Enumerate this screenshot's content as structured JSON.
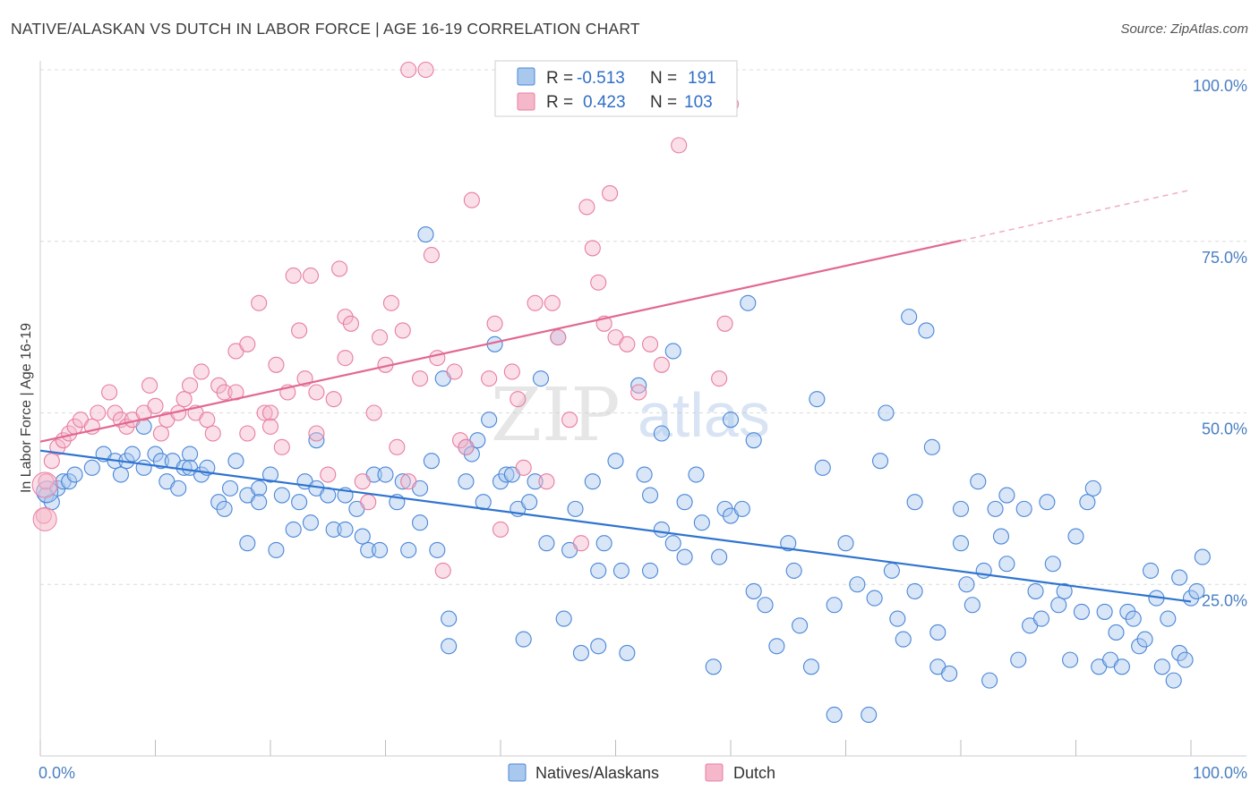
{
  "header": {
    "title": "NATIVE/ALASKAN VS DUTCH IN LABOR FORCE | AGE 16-19 CORRELATION CHART",
    "source": "Source: ZipAtlas.com"
  },
  "watermark": {
    "zip": "ZIP",
    "atlas": "atlas"
  },
  "legend_box": {
    "rows": [
      {
        "r_label": "R = ",
        "r_value": "-0.513",
        "n_label": "N = ",
        "n_value": "191",
        "color": "#a9c8ee"
      },
      {
        "r_label": "R = ",
        "r_value": "0.423",
        "n_label": "N = ",
        "n_value": "103",
        "color": "#f5b8cb"
      }
    ]
  },
  "bottom_legend": [
    {
      "label": "Natives/Alaskans",
      "color": "#a9c8ee"
    },
    {
      "label": "Dutch",
      "color": "#f5b8cb"
    }
  ],
  "chart_data": {
    "type": "scatter",
    "title": "NATIVE/ALASKAN VS DUTCH IN LABOR FORCE | AGE 16-19 CORRELATION CHART",
    "xlabel": "",
    "ylabel": "In Labor Force | Age 16-19",
    "x_tick_labels": [
      "0.0%",
      "100.0%"
    ],
    "y_tick_labels": [
      "25.0%",
      "50.0%",
      "75.0%",
      "100.0%"
    ],
    "xlim": [
      0,
      100
    ],
    "ylim": [
      0,
      100
    ],
    "grid": "horizontal dashed",
    "colors": {
      "natives": "#4a86d8",
      "dutch": "#e87da0",
      "natives_line": "#2f74d0",
      "dutch_line": "#e2688f"
    },
    "series": [
      {
        "name": "Natives/Alaskans",
        "trend": {
          "x": [
            0,
            100
          ],
          "y": [
            44.5,
            22.5
          ]
        },
        "points": [
          [
            0.5,
            38
          ],
          [
            1,
            37
          ],
          [
            1.5,
            39
          ],
          [
            2,
            40
          ],
          [
            2.5,
            40
          ],
          [
            3,
            41
          ],
          [
            4.5,
            42
          ],
          [
            5.5,
            44
          ],
          [
            6.5,
            43
          ],
          [
            7,
            41
          ],
          [
            7.5,
            43
          ],
          [
            8,
            44
          ],
          [
            9,
            42
          ],
          [
            9,
            48
          ],
          [
            10,
            44
          ],
          [
            10.5,
            43
          ],
          [
            11,
            40
          ],
          [
            11.5,
            43
          ],
          [
            12,
            39
          ],
          [
            12.5,
            42
          ],
          [
            13,
            44
          ],
          [
            13,
            42
          ],
          [
            14,
            41
          ],
          [
            14.5,
            42
          ],
          [
            15.5,
            37
          ],
          [
            16,
            36
          ],
          [
            16.5,
            39
          ],
          [
            17,
            43
          ],
          [
            18,
            31
          ],
          [
            18,
            38
          ],
          [
            19,
            39
          ],
          [
            19,
            37
          ],
          [
            20,
            41
          ],
          [
            20.5,
            30
          ],
          [
            21,
            38
          ],
          [
            22,
            33
          ],
          [
            22.5,
            37
          ],
          [
            23,
            40
          ],
          [
            23.5,
            34
          ],
          [
            24,
            39
          ],
          [
            24,
            46
          ],
          [
            25,
            38
          ],
          [
            25.5,
            33
          ],
          [
            26.5,
            38
          ],
          [
            26.5,
            33
          ],
          [
            27.5,
            36
          ],
          [
            28,
            32
          ],
          [
            28.5,
            30
          ],
          [
            29,
            41
          ],
          [
            29.5,
            30
          ],
          [
            30,
            41
          ],
          [
            31,
            37
          ],
          [
            31.5,
            40
          ],
          [
            32,
            30
          ],
          [
            33,
            39
          ],
          [
            33,
            34
          ],
          [
            33.5,
            76
          ],
          [
            34,
            43
          ],
          [
            34.5,
            30
          ],
          [
            35,
            55
          ],
          [
            35.5,
            20
          ],
          [
            35.5,
            16
          ],
          [
            37,
            45
          ],
          [
            37,
            40
          ],
          [
            37.5,
            44
          ],
          [
            38,
            46
          ],
          [
            38.5,
            37
          ],
          [
            39,
            49
          ],
          [
            39.5,
            60
          ],
          [
            40,
            40
          ],
          [
            40.5,
            41
          ],
          [
            41,
            41
          ],
          [
            41.5,
            36
          ],
          [
            42,
            17
          ],
          [
            42.5,
            37
          ],
          [
            43,
            40
          ],
          [
            43.5,
            55
          ],
          [
            44,
            31
          ],
          [
            45,
            61
          ],
          [
            45.5,
            20
          ],
          [
            46,
            30
          ],
          [
            46.5,
            36
          ],
          [
            47,
            15
          ],
          [
            48,
            40
          ],
          [
            48.5,
            27
          ],
          [
            48.5,
            16
          ],
          [
            49,
            31
          ],
          [
            50,
            43
          ],
          [
            50.5,
            27
          ],
          [
            51,
            15
          ],
          [
            52,
            54
          ],
          [
            52.5,
            41
          ],
          [
            53,
            38
          ],
          [
            53,
            27
          ],
          [
            54,
            33
          ],
          [
            54,
            47
          ],
          [
            55,
            31
          ],
          [
            55,
            59
          ],
          [
            56,
            37
          ],
          [
            56,
            29
          ],
          [
            57,
            41
          ],
          [
            57.5,
            34
          ],
          [
            58.5,
            13
          ],
          [
            59,
            29
          ],
          [
            59.5,
            36
          ],
          [
            60,
            35
          ],
          [
            60,
            49
          ],
          [
            61,
            36
          ],
          [
            61.5,
            66
          ],
          [
            62,
            46
          ],
          [
            62,
            24
          ],
          [
            63,
            22
          ],
          [
            64,
            16
          ],
          [
            65,
            31
          ],
          [
            65.5,
            27
          ],
          [
            66,
            19
          ],
          [
            67,
            13
          ],
          [
            67.5,
            52
          ],
          [
            68,
            42
          ],
          [
            69,
            6
          ],
          [
            69,
            22
          ],
          [
            70,
            31
          ],
          [
            71,
            25
          ],
          [
            72,
            6
          ],
          [
            72.5,
            23
          ],
          [
            73,
            43
          ],
          [
            73.5,
            50
          ],
          [
            74,
            27
          ],
          [
            74.5,
            20
          ],
          [
            75,
            17
          ],
          [
            75.5,
            64
          ],
          [
            76,
            37
          ],
          [
            76,
            24
          ],
          [
            77,
            62
          ],
          [
            77.5,
            45
          ],
          [
            78,
            13
          ],
          [
            78,
            18
          ],
          [
            79,
            12
          ],
          [
            80,
            31
          ],
          [
            80,
            36
          ],
          [
            80.5,
            25
          ],
          [
            81,
            22
          ],
          [
            81.5,
            40
          ],
          [
            82,
            27
          ],
          [
            82.5,
            11
          ],
          [
            83,
            36
          ],
          [
            83.5,
            32
          ],
          [
            84,
            38
          ],
          [
            84,
            28
          ],
          [
            85,
            14
          ],
          [
            85.5,
            36
          ],
          [
            86,
            19
          ],
          [
            86.5,
            24
          ],
          [
            87,
            20
          ],
          [
            87.5,
            37
          ],
          [
            88,
            28
          ],
          [
            88.5,
            22
          ],
          [
            89,
            24
          ],
          [
            89.5,
            14
          ],
          [
            90,
            32
          ],
          [
            90.5,
            21
          ],
          [
            91,
            37
          ],
          [
            91.5,
            39
          ],
          [
            92,
            13
          ],
          [
            92.5,
            21
          ],
          [
            93,
            14
          ],
          [
            93.5,
            18
          ],
          [
            94,
            13
          ],
          [
            94.5,
            21
          ],
          [
            95,
            20
          ],
          [
            95.5,
            16
          ],
          [
            96,
            17
          ],
          [
            96.5,
            27
          ],
          [
            97,
            23
          ],
          [
            97.5,
            13
          ],
          [
            98,
            20
          ],
          [
            98.5,
            11
          ],
          [
            99,
            26
          ],
          [
            99,
            15
          ],
          [
            99.5,
            14
          ],
          [
            100,
            23
          ],
          [
            100.5,
            24
          ],
          [
            101,
            29
          ]
        ]
      },
      {
        "name": "Dutch",
        "trend": {
          "x": [
            0,
            80
          ],
          "y": [
            45.8,
            75.1
          ]
        },
        "trend_dashed": {
          "x": [
            80,
            100
          ],
          "y": [
            75.1,
            82.5
          ]
        },
        "points": [
          [
            0.3,
            35
          ],
          [
            0.5,
            40
          ],
          [
            1,
            43
          ],
          [
            1.5,
            45
          ],
          [
            2,
            46
          ],
          [
            2.5,
            47
          ],
          [
            3,
            48
          ],
          [
            3.5,
            49
          ],
          [
            4.5,
            48
          ],
          [
            5,
            50
          ],
          [
            6,
            53
          ],
          [
            6.5,
            50
          ],
          [
            7,
            49
          ],
          [
            7.5,
            48
          ],
          [
            8,
            49
          ],
          [
            9,
            50
          ],
          [
            9.5,
            54
          ],
          [
            10,
            51
          ],
          [
            10.5,
            47
          ],
          [
            11,
            49
          ],
          [
            12,
            50
          ],
          [
            12.5,
            52
          ],
          [
            13,
            54
          ],
          [
            13.5,
            50
          ],
          [
            14,
            56
          ],
          [
            14.5,
            49
          ],
          [
            15,
            47
          ],
          [
            15.5,
            54
          ],
          [
            16,
            53
          ],
          [
            17,
            53
          ],
          [
            17,
            59
          ],
          [
            18,
            60
          ],
          [
            18,
            47
          ],
          [
            19,
            66
          ],
          [
            19.5,
            50
          ],
          [
            20,
            50
          ],
          [
            20,
            48
          ],
          [
            20.5,
            57
          ],
          [
            21,
            45
          ],
          [
            21.5,
            53
          ],
          [
            22,
            70
          ],
          [
            22.5,
            62
          ],
          [
            23,
            55
          ],
          [
            23.5,
            70
          ],
          [
            24,
            53
          ],
          [
            24,
            47
          ],
          [
            25,
            41
          ],
          [
            25.5,
            52
          ],
          [
            26,
            71
          ],
          [
            26.5,
            64
          ],
          [
            26.5,
            58
          ],
          [
            27,
            63
          ],
          [
            28,
            40
          ],
          [
            28.5,
            37
          ],
          [
            29,
            50
          ],
          [
            29.5,
            61
          ],
          [
            30,
            57
          ],
          [
            30.5,
            66
          ],
          [
            31,
            45
          ],
          [
            31.5,
            62
          ],
          [
            32,
            40
          ],
          [
            32,
            100
          ],
          [
            33,
            55
          ],
          [
            33.5,
            100
          ],
          [
            34,
            73
          ],
          [
            34.5,
            58
          ],
          [
            35,
            27
          ],
          [
            36,
            56
          ],
          [
            36.5,
            46
          ],
          [
            37,
            45
          ],
          [
            37.5,
            81
          ],
          [
            39,
            55
          ],
          [
            39.5,
            63
          ],
          [
            40,
            33
          ],
          [
            41,
            56
          ],
          [
            41.5,
            52
          ],
          [
            42,
            42
          ],
          [
            43,
            66
          ],
          [
            44,
            40
          ],
          [
            44.5,
            66
          ],
          [
            45,
            61
          ],
          [
            46,
            49
          ],
          [
            47,
            31
          ],
          [
            47.5,
            80
          ],
          [
            48,
            74
          ],
          [
            48.5,
            69
          ],
          [
            49,
            63
          ],
          [
            49.5,
            82
          ],
          [
            50,
            61
          ],
          [
            51,
            60
          ],
          [
            52,
            53
          ],
          [
            53,
            60
          ],
          [
            54,
            57
          ],
          [
            55,
            100
          ],
          [
            55.5,
            89
          ],
          [
            58,
            100
          ],
          [
            59,
            55
          ],
          [
            59.5,
            63
          ],
          [
            60,
            95
          ]
        ]
      }
    ]
  }
}
